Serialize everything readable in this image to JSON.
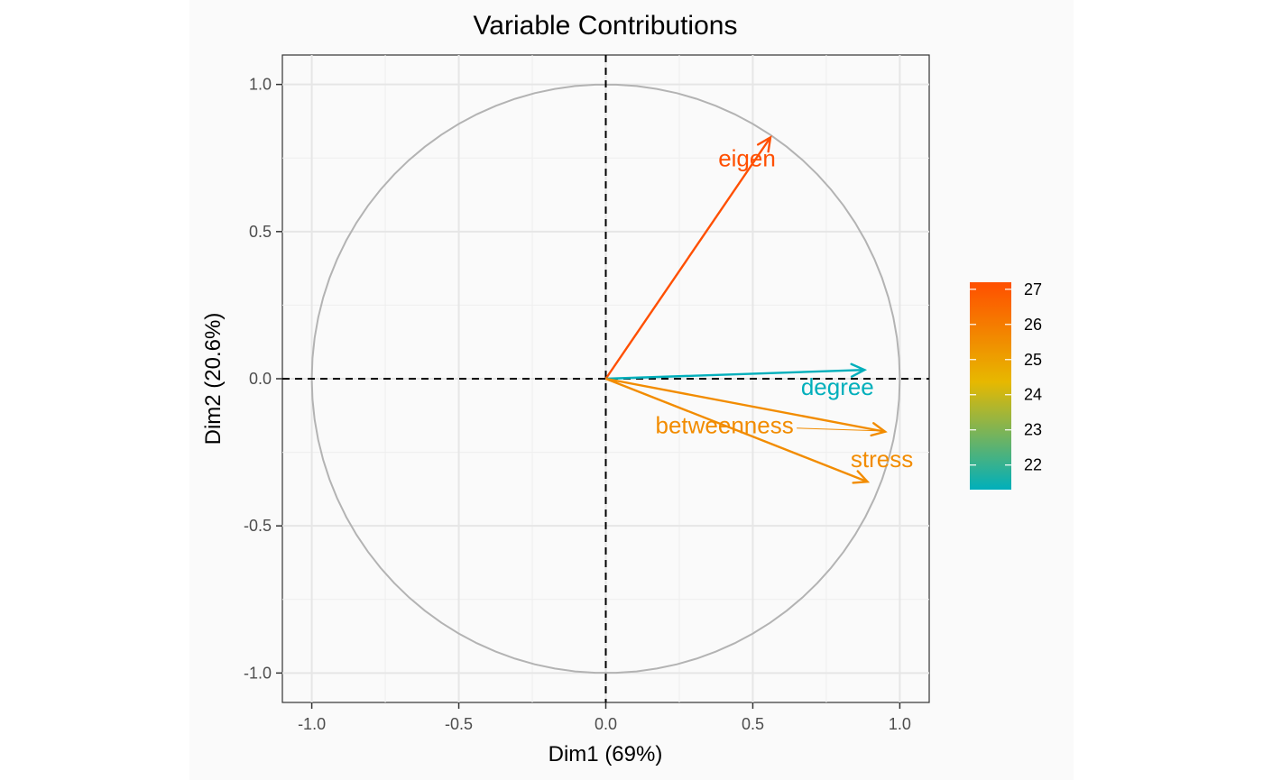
{
  "chart_data": {
    "type": "scatter",
    "subtype": "pca-variable-correlation-circle",
    "title": "Variable Contributions",
    "xlabel": "Dim1 (69%)",
    "ylabel": "Dim2 (20.6%)",
    "xlim": [
      -1.1,
      1.1
    ],
    "ylim": [
      -1.1,
      1.1
    ],
    "x_ticks": [
      -1.0,
      -0.5,
      0.0,
      0.5,
      1.0
    ],
    "y_ticks": [
      -1.0,
      -0.5,
      0.0,
      0.5,
      1.0
    ],
    "x_tick_labels": [
      "-1.0",
      "-0.5",
      "0.0",
      "0.5",
      "1.0"
    ],
    "y_tick_labels": [
      "-1.0",
      "-0.5",
      "0.0",
      "0.5",
      "1.0"
    ],
    "grid": true,
    "reference_lines": {
      "x": 0,
      "y": 0,
      "style": "dashed"
    },
    "unit_circle": true,
    "variables": [
      {
        "name": "eigen",
        "x": 0.56,
        "y": 0.82,
        "contrib": 27.2,
        "color": "#FF4F00"
      },
      {
        "name": "degree",
        "x": 0.88,
        "y": 0.03,
        "contrib": 21.3,
        "color": "#00AFBB"
      },
      {
        "name": "betweenness",
        "x": 0.95,
        "y": -0.18,
        "contrib": 25.6,
        "color": "#F28C00"
      },
      {
        "name": "stress",
        "x": 0.89,
        "y": -0.35,
        "contrib": 25.7,
        "color": "#F28C00"
      }
    ],
    "legend": {
      "placement": "right",
      "type": "gradient",
      "values": [
        27,
        26,
        25,
        24,
        23,
        22
      ],
      "labels": [
        "27",
        "26",
        "25",
        "24",
        "23",
        "22"
      ],
      "min": 21.3,
      "max": 27.2,
      "colors": [
        "#FF4F00",
        "#E7B800",
        "#00AFBB"
      ]
    }
  }
}
